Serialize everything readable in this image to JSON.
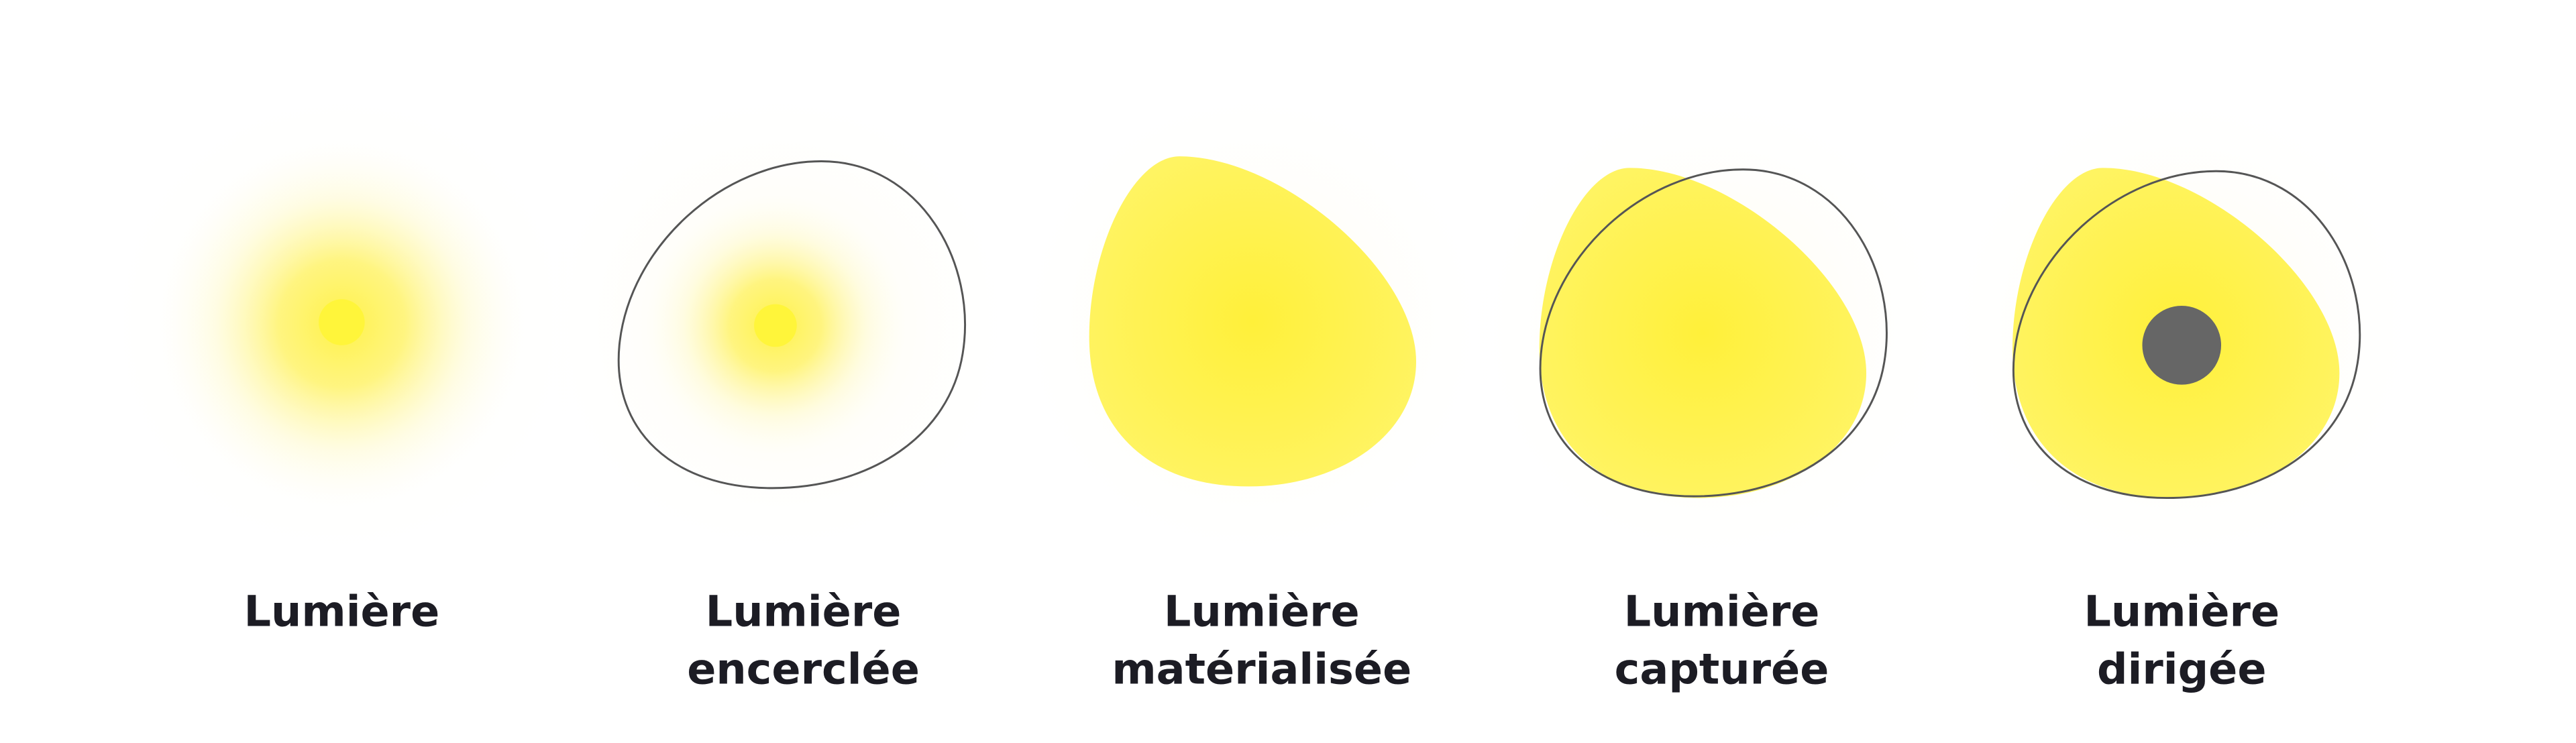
{
  "items": [
    {
      "label_lines": [
        "Lumière"
      ]
    },
    {
      "label_lines": [
        "Lumière",
        "encerclée"
      ]
    },
    {
      "label_lines": [
        "Lumière",
        "matérialisée"
      ]
    },
    {
      "label_lines": [
        "Lumière",
        "capturée"
      ]
    },
    {
      "label_lines": [
        "Lumière",
        "dirigée"
      ]
    }
  ]
}
